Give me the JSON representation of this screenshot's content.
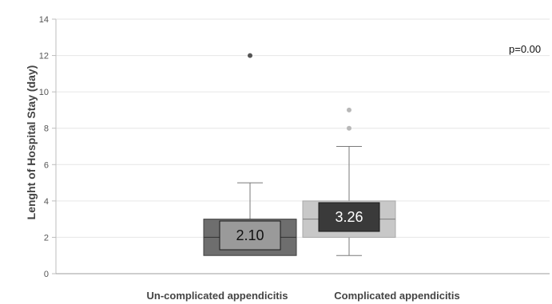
{
  "chart_data": {
    "type": "box",
    "ylabel": "Lenght of Hospital Stay  (day)",
    "ylim": [
      0,
      14
    ],
    "yticks": [
      0,
      2,
      4,
      6,
      8,
      10,
      12,
      14
    ],
    "grid": true,
    "annotation": "p=0.00",
    "categories": [
      "Un-complicated appendicitis",
      "Complicated appendicitis"
    ],
    "series": [
      {
        "category": "Un-complicated appendicitis",
        "min": 1,
        "q1": 1,
        "median": 2,
        "q3": 3,
        "max": 5,
        "mean_label": "2.10",
        "outliers": [
          12
        ],
        "box_color": "#6e6e6e",
        "mean_box_fill": "#9a9a9a",
        "mean_text_color": "#111111"
      },
      {
        "category": "Complicated appendicitis",
        "min": 1,
        "q1": 2,
        "median": 3,
        "q3": 4,
        "max": 7,
        "mean_label": "3.26",
        "outliers": [
          8,
          9
        ],
        "box_color": "#c8c8c8",
        "mean_box_fill": "#3a3a3a",
        "mean_text_color": "#ffffff"
      }
    ]
  }
}
